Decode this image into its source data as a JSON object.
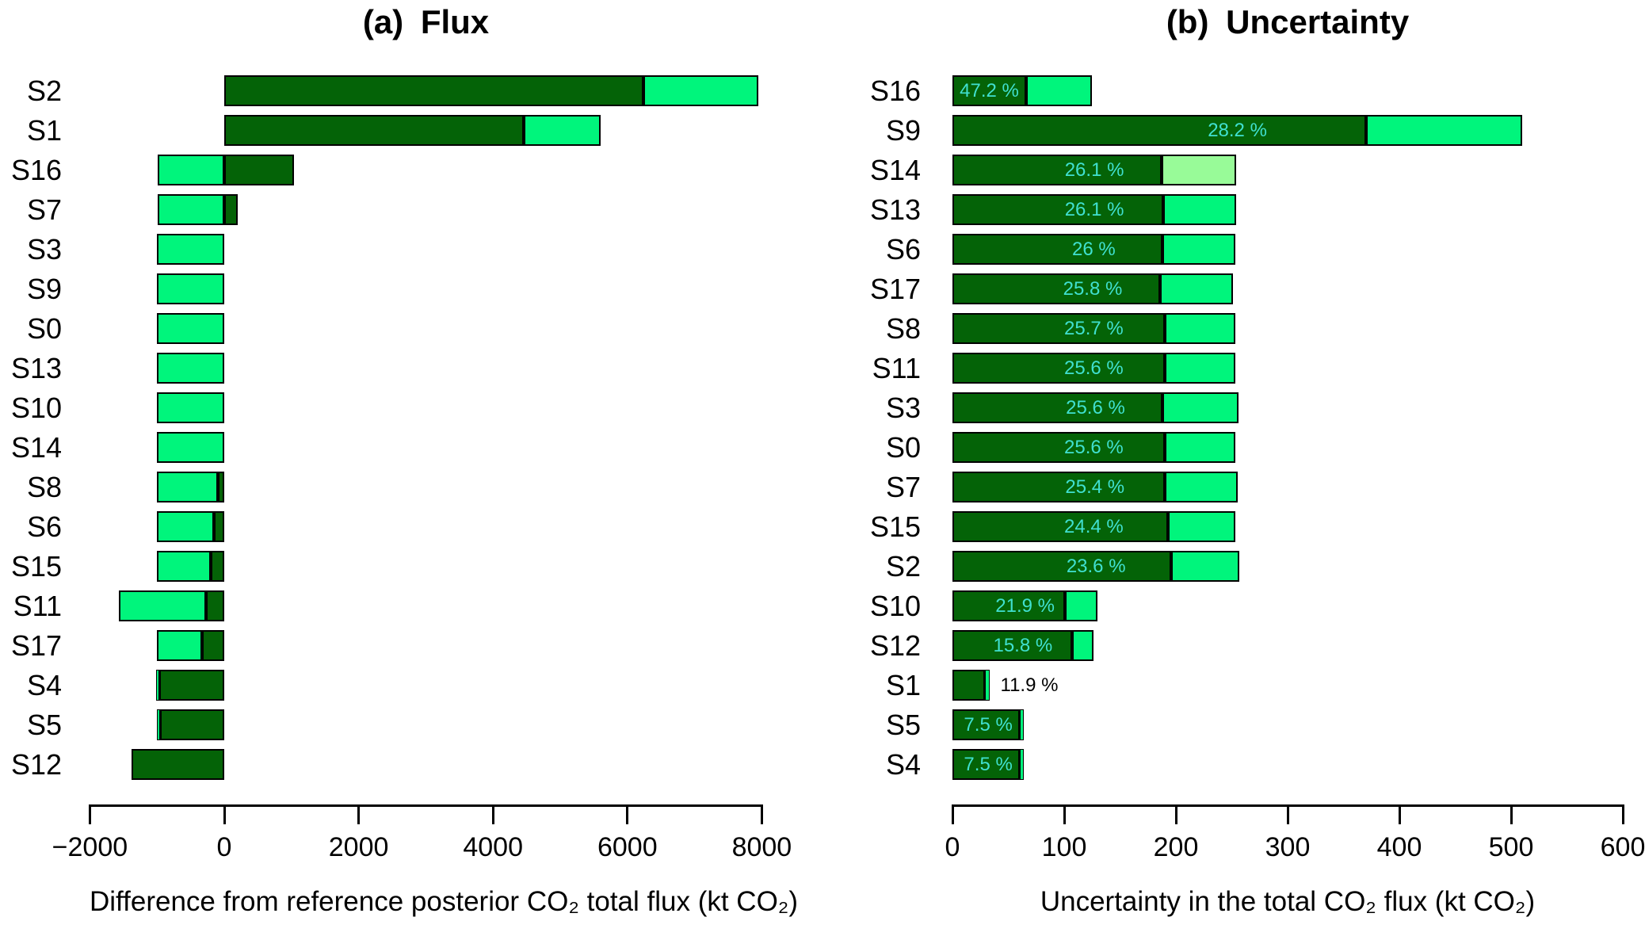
{
  "figure": {
    "background": "#ffffff",
    "colors": {
      "dark_green": "#046307",
      "spring_green": "#00F57C",
      "pale_green": "#98FB98",
      "pct_label": "#40E0D0",
      "pct_label_outside": "#000000",
      "axis": "#000000",
      "text": "#000000"
    }
  },
  "chart_data": [
    {
      "id": "flux",
      "type": "bar",
      "orientation": "horizontal",
      "stacked": true,
      "title": "(a) Flux",
      "xlabel": "Difference from reference posterior CO₂ total flux (kt CO₂)",
      "xlim": [
        -2000,
        8000
      ],
      "xticks": [
        -2000,
        0,
        2000,
        4000,
        6000,
        8000
      ],
      "xtick_labels": [
        "−2000",
        "0",
        "2000",
        "4000",
        "6000",
        "8000"
      ],
      "grid": false,
      "legend": "none",
      "rows": [
        {
          "label": "S2",
          "dark": [
            0,
            6240
          ],
          "light": [
            6240,
            7950
          ]
        },
        {
          "label": "S1",
          "dark": [
            0,
            4460
          ],
          "light": [
            4460,
            5600
          ]
        },
        {
          "label": "S16",
          "dark": [
            0,
            1040
          ],
          "light": [
            -995,
            0
          ]
        },
        {
          "label": "S7",
          "dark": [
            0,
            200
          ],
          "light": [
            -995,
            0
          ]
        },
        {
          "label": "S3",
          "dark": null,
          "light": [
            -1000,
            0
          ]
        },
        {
          "label": "S9",
          "dark": null,
          "light": [
            -1000,
            0
          ]
        },
        {
          "label": "S0",
          "dark": null,
          "light": [
            -1000,
            0
          ]
        },
        {
          "label": "S13",
          "dark": null,
          "light": [
            -1000,
            0
          ]
        },
        {
          "label": "S10",
          "dark": null,
          "light": [
            -1000,
            0
          ]
        },
        {
          "label": "S14",
          "dark": null,
          "light": [
            -1000,
            0
          ]
        },
        {
          "label": "S8",
          "dark": [
            -95,
            0
          ],
          "light": [
            -1000,
            -95
          ]
        },
        {
          "label": "S6",
          "dark": [
            -150,
            0
          ],
          "light": [
            -1000,
            -150
          ]
        },
        {
          "label": "S15",
          "dark": [
            -205,
            0
          ],
          "light": [
            -1000,
            -205
          ]
        },
        {
          "label": "S11",
          "dark": [
            -270,
            0
          ],
          "light": [
            -1565,
            -270
          ]
        },
        {
          "label": "S17",
          "dark": [
            -330,
            0
          ],
          "light": [
            -1000,
            -330
          ]
        },
        {
          "label": "S4",
          "dark": [
            -970,
            0
          ],
          "light": [
            -1015,
            -970
          ]
        },
        {
          "label": "S5",
          "dark": [
            -955,
            0
          ],
          "light": [
            -1005,
            -955
          ]
        },
        {
          "label": "S12",
          "dark": [
            -1380,
            0
          ],
          "light": null
        }
      ]
    },
    {
      "id": "uncertainty",
      "type": "bar",
      "orientation": "horizontal",
      "stacked": true,
      "title": "(b) Uncertainty",
      "xlabel": "Uncertainty in the total CO₂ flux (kt CO₂)",
      "xlim": [
        0,
        600
      ],
      "xticks": [
        0,
        100,
        200,
        300,
        400,
        500,
        600
      ],
      "xtick_labels": [
        "0",
        "100",
        "200",
        "300",
        "400",
        "500",
        "600"
      ],
      "grid": false,
      "legend": "none",
      "rows": [
        {
          "label": "S16",
          "dark": [
            0,
            66
          ],
          "light": [
            66,
            125
          ],
          "pct": "47.2 %",
          "pct_pos": "dark"
        },
        {
          "label": "S9",
          "dark": [
            0,
            370
          ],
          "light": [
            370,
            510
          ],
          "pct": "28.2 %",
          "pct_pos": "total"
        },
        {
          "label": "S14",
          "dark": [
            0,
            187
          ],
          "light": [
            187,
            254
          ],
          "pct": "26.1 %",
          "pct_pos": "total",
          "light_color": "pale"
        },
        {
          "label": "S13",
          "dark": [
            0,
            189
          ],
          "light": [
            189,
            254
          ],
          "pct": "26.1 %",
          "pct_pos": "total"
        },
        {
          "label": "S6",
          "dark": [
            0,
            188
          ],
          "light": [
            188,
            253
          ],
          "pct": "26 %",
          "pct_pos": "total"
        },
        {
          "label": "S17",
          "dark": [
            0,
            186
          ],
          "light": [
            186,
            251
          ],
          "pct": "25.8 %",
          "pct_pos": "total"
        },
        {
          "label": "S8",
          "dark": [
            0,
            190
          ],
          "light": [
            190,
            253
          ],
          "pct": "25.7 %",
          "pct_pos": "total"
        },
        {
          "label": "S11",
          "dark": [
            0,
            190
          ],
          "light": [
            190,
            253
          ],
          "pct": "25.6 %",
          "pct_pos": "total"
        },
        {
          "label": "S3",
          "dark": [
            0,
            188
          ],
          "light": [
            188,
            256
          ],
          "pct": "25.6 %",
          "pct_pos": "total"
        },
        {
          "label": "S0",
          "dark": [
            0,
            190
          ],
          "light": [
            190,
            253
          ],
          "pct": "25.6 %",
          "pct_pos": "total"
        },
        {
          "label": "S7",
          "dark": [
            0,
            190
          ],
          "light": [
            190,
            255
          ],
          "pct": "25.4 %",
          "pct_pos": "total"
        },
        {
          "label": "S15",
          "dark": [
            0,
            193
          ],
          "light": [
            193,
            253
          ],
          "pct": "24.4 %",
          "pct_pos": "total"
        },
        {
          "label": "S2",
          "dark": [
            0,
            196
          ],
          "light": [
            196,
            257
          ],
          "pct": "23.6 %",
          "pct_pos": "total"
        },
        {
          "label": "S10",
          "dark": [
            0,
            101
          ],
          "light": [
            101,
            130
          ],
          "pct": "21.9 %",
          "pct_pos": "total"
        },
        {
          "label": "S12",
          "dark": [
            0,
            107
          ],
          "light": [
            107,
            126
          ],
          "pct": "15.8 %",
          "pct_pos": "total"
        },
        {
          "label": "S1",
          "dark": [
            0,
            29
          ],
          "light": [
            29,
            33
          ],
          "pct": "11.9 %",
          "pct_pos": "outside"
        },
        {
          "label": "S5",
          "dark": [
            0,
            60
          ],
          "light": [
            60,
            64
          ],
          "pct": "7.5 %",
          "pct_pos": "total"
        },
        {
          "label": "S4",
          "dark": [
            0,
            60
          ],
          "light": [
            60,
            64
          ],
          "pct": "7.5 %",
          "pct_pos": "total"
        }
      ]
    }
  ]
}
